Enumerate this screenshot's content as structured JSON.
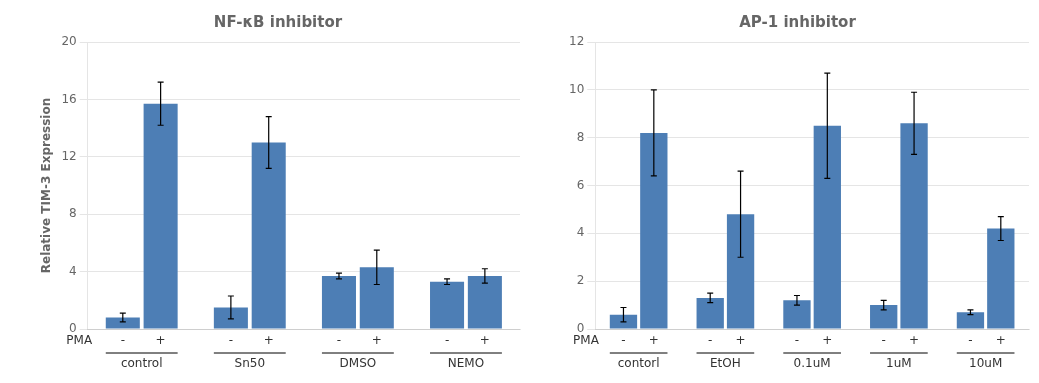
{
  "chart_data": [
    {
      "type": "bar",
      "title": "NF-κB inhibitor",
      "ylabel": "Relative TIM-3 Expression",
      "categories": [
        "control",
        "Sn50",
        "DMSO",
        "NEMO"
      ],
      "series": [
        {
          "name": "-",
          "color": "#4d7eb5",
          "values": [
            0.8,
            1.5,
            3.7,
            3.3
          ],
          "errors": [
            0.3,
            0.8,
            0.2,
            0.2
          ]
        },
        {
          "name": "+",
          "color": "#4d7eb5",
          "values": [
            15.7,
            13.0,
            4.3,
            3.7
          ],
          "errors": [
            1.5,
            1.8,
            1.2,
            0.5
          ]
        }
      ],
      "annotations": [
        "PMA"
      ],
      "ylim": [
        0,
        20
      ],
      "yticks": [
        0,
        4,
        8,
        12,
        16,
        20
      ],
      "grid": true
    },
    {
      "type": "bar",
      "title": "AP-1 inhibitor",
      "categories": [
        "contorl",
        "EtOH",
        "0.1uM",
        "1uM",
        "10uM"
      ],
      "series": [
        {
          "name": "-",
          "color": "#4d7eb5",
          "values": [
            0.6,
            1.3,
            1.2,
            1.0,
            0.7
          ],
          "errors": [
            0.3,
            0.2,
            0.2,
            0.2,
            0.1
          ]
        },
        {
          "name": "+",
          "color": "#4d7eb5",
          "values": [
            8.2,
            4.8,
            8.5,
            8.6,
            4.2
          ],
          "errors": [
            1.8,
            1.8,
            2.2,
            1.3,
            0.5
          ]
        }
      ],
      "annotations": [
        "PMA"
      ],
      "ylim": [
        0,
        12
      ],
      "yticks": [
        0,
        2,
        4,
        6,
        8,
        10,
        12
      ],
      "grid": true
    }
  ]
}
